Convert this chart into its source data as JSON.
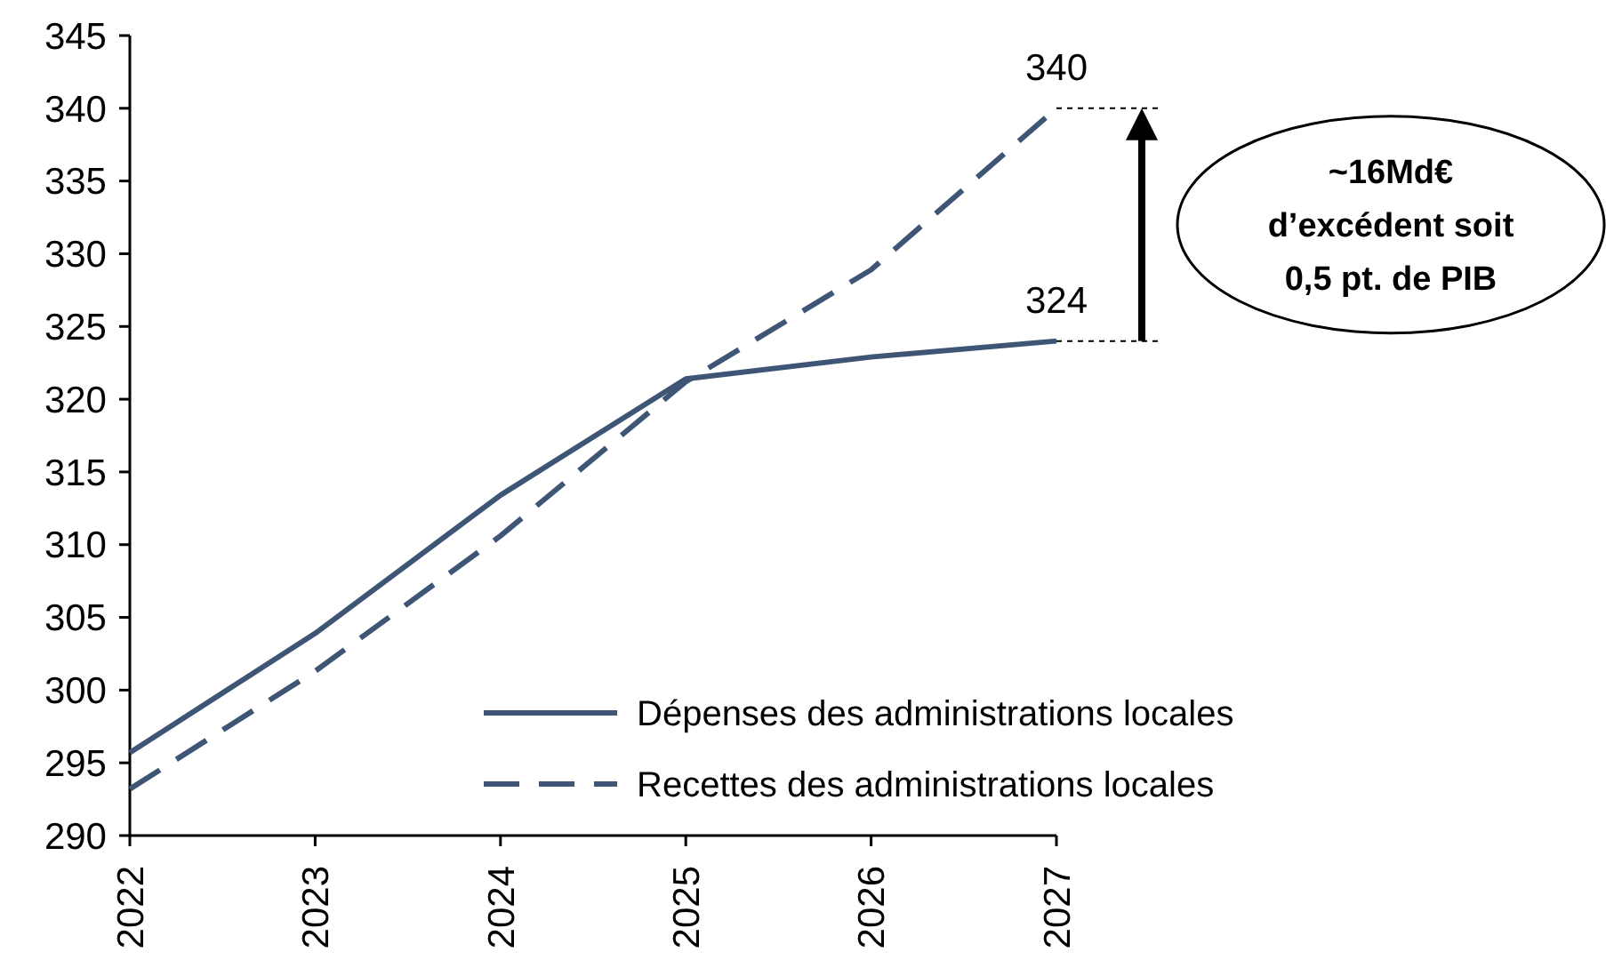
{
  "chart_data": {
    "type": "line",
    "categories": [
      "2022",
      "2023",
      "2024",
      "2025",
      "2026",
      "2027"
    ],
    "series": [
      {
        "name": "Dépenses des administrations locales",
        "color": "#3f5575",
        "line_style": "solid",
        "values": [
          295.7,
          303.9,
          313.4,
          321.4,
          322.9,
          324
        ],
        "value_labels": [
          null,
          null,
          null,
          null,
          null,
          "324"
        ]
      },
      {
        "name": "Recettes des administrations locales",
        "color": "#3f5575",
        "line_style": "dashed",
        "values": [
          293.2,
          301.3,
          310.6,
          321.2,
          328.9,
          340
        ],
        "value_labels": [
          null,
          null,
          null,
          null,
          null,
          "340"
        ]
      }
    ],
    "ylim": [
      290,
      345
    ],
    "yticks": [
      290,
      295,
      300,
      305,
      310,
      315,
      320,
      325,
      330,
      335,
      340,
      345
    ],
    "grid": false,
    "legend": "bottom right",
    "annotations": [
      "~16Md€\nd’excédent soit\n0,5 pt. de PIB"
    ]
  }
}
